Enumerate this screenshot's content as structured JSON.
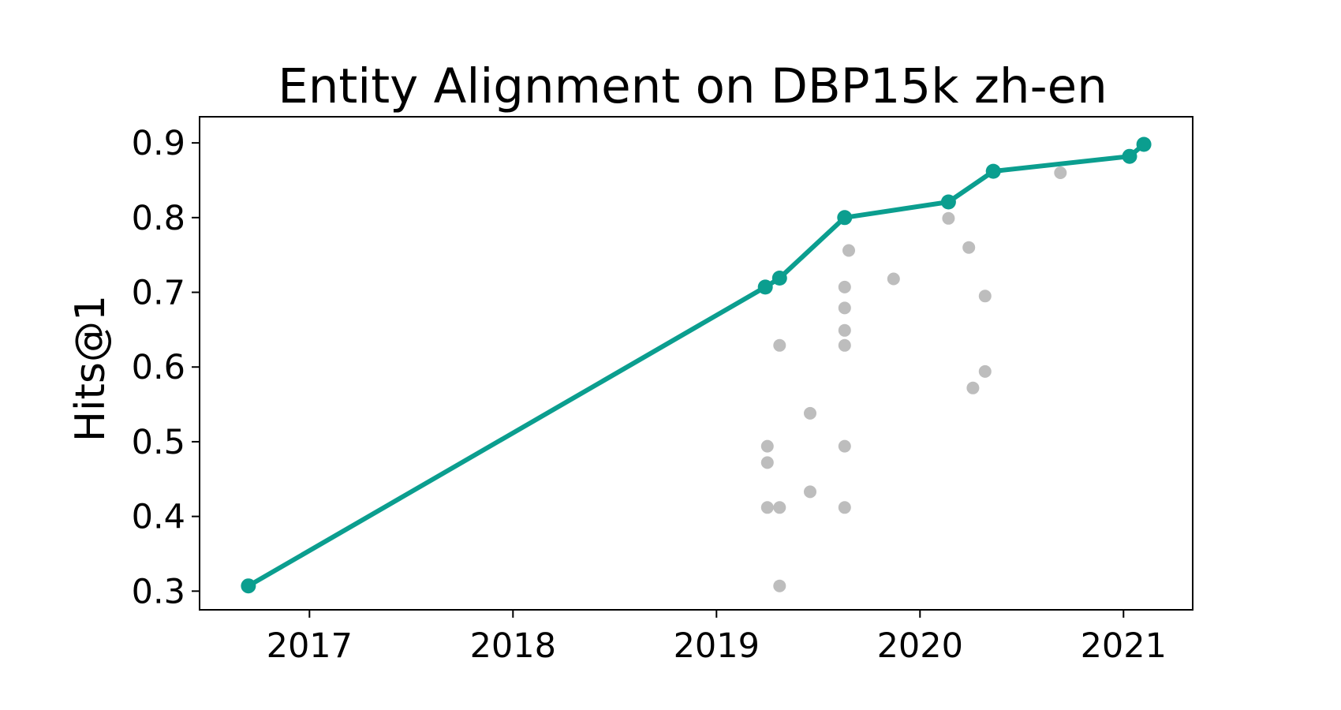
{
  "chart_data": {
    "type": "scatter",
    "title": "Entity Alignment on DBP15k zh-en",
    "xlabel": "",
    "ylabel": "Hits@1",
    "xlim": [
      2016.46,
      2021.34
    ],
    "ylim": [
      0.275,
      0.935
    ],
    "x_ticks": [
      2017,
      2018,
      2019,
      2020,
      2021
    ],
    "y_ticks": [
      0.3,
      0.4,
      0.5,
      0.6,
      0.7,
      0.8,
      0.9
    ],
    "x_tick_labels": [
      "2017",
      "2018",
      "2019",
      "2020",
      "2021"
    ],
    "y_tick_labels": [
      "0.3",
      "0.4",
      "0.5",
      "0.6",
      "0.7",
      "0.8",
      "0.9"
    ],
    "grid": false,
    "colors": {
      "sota": "#0b9e8f",
      "other": "#bdbdbd"
    },
    "series": [
      {
        "role": "sota-line",
        "points": [
          [
            2016.7,
            0.307
          ],
          [
            2019.24,
            0.707
          ],
          [
            2019.31,
            0.719
          ],
          [
            2019.63,
            0.8
          ],
          [
            2020.14,
            0.821
          ],
          [
            2020.36,
            0.862
          ],
          [
            2021.03,
            0.882
          ],
          [
            2021.1,
            0.898
          ]
        ]
      },
      {
        "role": "other-points",
        "points": [
          [
            2019.25,
            0.494
          ],
          [
            2019.25,
            0.472
          ],
          [
            2019.25,
            0.412
          ],
          [
            2019.31,
            0.629
          ],
          [
            2019.31,
            0.412
          ],
          [
            2019.31,
            0.307
          ],
          [
            2019.46,
            0.538
          ],
          [
            2019.46,
            0.433
          ],
          [
            2019.63,
            0.707
          ],
          [
            2019.63,
            0.679
          ],
          [
            2019.63,
            0.649
          ],
          [
            2019.63,
            0.629
          ],
          [
            2019.63,
            0.494
          ],
          [
            2019.63,
            0.412
          ],
          [
            2019.65,
            0.756
          ],
          [
            2019.87,
            0.718
          ],
          [
            2020.14,
            0.799
          ],
          [
            2020.24,
            0.76
          ],
          [
            2020.26,
            0.572
          ],
          [
            2020.32,
            0.695
          ],
          [
            2020.32,
            0.594
          ],
          [
            2020.69,
            0.86
          ]
        ]
      }
    ]
  }
}
